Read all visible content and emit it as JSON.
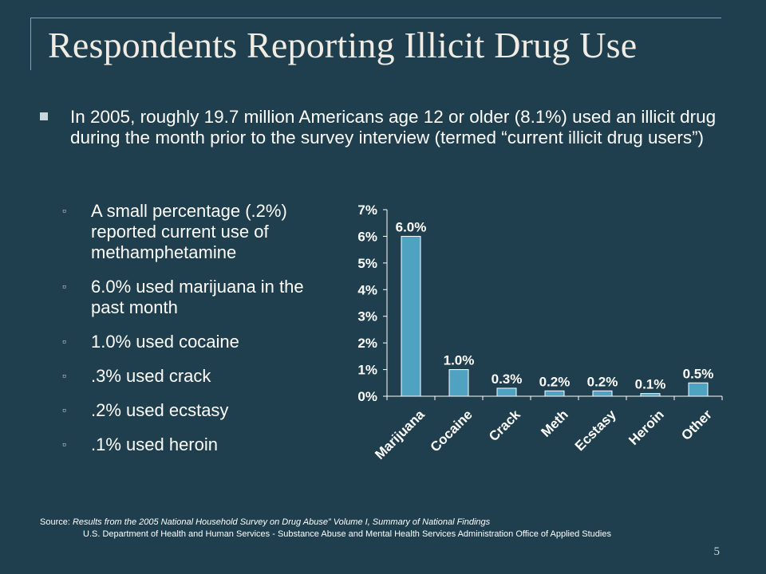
{
  "slide": {
    "title": "Respondents Reporting Illicit Drug Use",
    "main_bullet": "In 2005, roughly 19.7 million Americans age 12 or older (8.1%) used an illicit drug during the month prior to the survey interview (termed “current illicit drug users”)",
    "sub_bullets": [
      "A small percentage (.2%) reported current use of methamphetamine",
      "6.0% used marijuana in the past month",
      "1.0% used cocaine",
      ".3% used crack",
      ".2% used ecstasy",
      ".1% used heroin"
    ],
    "source_label": "Source:",
    "source_title": "Results from the 2005 National Household Survey on Drug Abuse” Volume I, Summary of National Findings",
    "source_line2": "U.S. Department of Health and Human Services - Substance Abuse and Mental Health Services Administration Office of Applied Studies",
    "page_number": "5"
  },
  "colors": {
    "background": "#1f3f4e",
    "bar": "#4fa3c1",
    "bullet": "#c9d6dc"
  },
  "chart_data": {
    "type": "bar",
    "categories": [
      "Marijuana",
      "Cocaine",
      "Crack",
      "Meth",
      "Ecstasy",
      "Heroin",
      "Other"
    ],
    "values": [
      6.0,
      1.0,
      0.3,
      0.2,
      0.2,
      0.1,
      0.5
    ],
    "data_labels": [
      "6.0%",
      "1.0%",
      "0.3%",
      "0.2%",
      "0.2%",
      "0.1%",
      "0.5%"
    ],
    "y_ticks": [
      "0%",
      "1%",
      "2%",
      "3%",
      "4%",
      "5%",
      "6%",
      "7%"
    ],
    "ylim": [
      0,
      7
    ],
    "grid": false,
    "legend": "none"
  }
}
